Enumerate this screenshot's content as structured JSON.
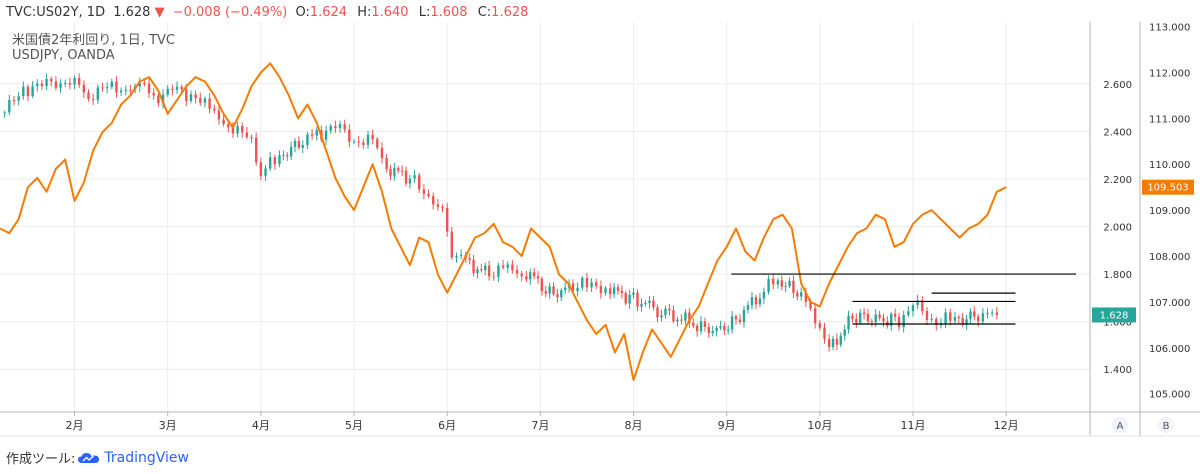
{
  "header": {
    "symbol": "TVC:US02Y, 1D",
    "last": "1.628",
    "change": "−0.008 (−0.49%)",
    "o_label": "O:",
    "o_val": "1.624",
    "h_label": "H:",
    "h_val": "1.640",
    "l_label": "L:",
    "l_val": "1.608",
    "c_label": "C:",
    "c_val": "1.628"
  },
  "legend": {
    "line1": "米国債2年利回り, 1日, TVC",
    "line2": "USDJPY, OANDA"
  },
  "badges": {
    "usdjpy": "109.503",
    "yield": "1.628"
  },
  "scale_buttons": {
    "a": "A",
    "b": "B"
  },
  "footer": {
    "prefix": "作成ツール:",
    "brand": "TradingView"
  },
  "colors": {
    "up": "#26a69a",
    "down": "#ef5350",
    "line": "#f57c00",
    "grid": "#ececec",
    "axis": "#b2b5be"
  },
  "chart_data": {
    "type": "line",
    "title": "米国債2年利回り, 1日, TVC / USDJPY, OANDA",
    "categories": [
      "2月",
      "3月",
      "4月",
      "5月",
      "6月",
      "7月",
      "8月",
      "9月",
      "10月",
      "11月",
      "12月"
    ],
    "x_range": [
      1.2,
      12.9
    ],
    "y_left_ticks": [
      "1.400",
      "1.600",
      "1.800",
      "2.000",
      "2.200",
      "2.400",
      "2.600"
    ],
    "y_left_range": [
      1.22,
      2.86
    ],
    "y_right_ticks": [
      "105.000",
      "106.000",
      "107.000",
      "108.000",
      "109.000",
      "110.000",
      "111.000",
      "112.000",
      "113.000"
    ],
    "y_right_range": [
      104.6,
      113.1
    ],
    "series": [
      {
        "name": "米国債2年利回り (candles, close)",
        "axis": "left",
        "x": [
          1.25,
          1.45,
          1.65,
          1.85,
          2.0,
          2.15,
          2.35,
          2.55,
          2.75,
          2.9,
          3.1,
          3.3,
          3.5,
          3.7,
          3.9,
          4.0,
          4.2,
          4.45,
          4.6,
          4.8,
          5.0,
          5.2,
          5.35,
          5.6,
          5.8,
          5.95,
          6.05,
          6.2,
          6.45,
          6.65,
          6.85,
          7.1,
          7.35,
          7.55,
          7.75,
          8.0,
          8.3,
          8.6,
          8.85,
          9.1,
          9.4,
          9.55,
          9.8,
          10.0,
          10.1,
          10.35,
          10.6,
          10.85,
          11.05,
          11.25,
          11.45,
          11.7,
          11.9
        ],
        "values": [
          2.48,
          2.58,
          2.59,
          2.62,
          2.6,
          2.55,
          2.58,
          2.59,
          2.57,
          2.55,
          2.57,
          2.55,
          2.47,
          2.42,
          2.35,
          2.22,
          2.3,
          2.35,
          2.39,
          2.42,
          2.37,
          2.35,
          2.25,
          2.2,
          2.14,
          2.05,
          1.9,
          1.85,
          1.8,
          1.82,
          1.81,
          1.72,
          1.74,
          1.76,
          1.73,
          1.7,
          1.64,
          1.6,
          1.55,
          1.61,
          1.73,
          1.78,
          1.7,
          1.6,
          1.48,
          1.62,
          1.61,
          1.61,
          1.66,
          1.6,
          1.61,
          1.62,
          1.628
        ]
      },
      {
        "name": "USDJPY",
        "axis": "right",
        "x": [
          1.2,
          1.3,
          1.4,
          1.5,
          1.6,
          1.7,
          1.8,
          1.9,
          2.0,
          2.1,
          2.2,
          2.3,
          2.4,
          2.5,
          2.6,
          2.7,
          2.8,
          2.9,
          3.0,
          3.1,
          3.2,
          3.3,
          3.4,
          3.5,
          3.6,
          3.7,
          3.8,
          3.9,
          4.0,
          4.1,
          4.2,
          4.3,
          4.4,
          4.5,
          4.6,
          4.7,
          4.8,
          4.9,
          5.0,
          5.1,
          5.2,
          5.3,
          5.4,
          5.5,
          5.6,
          5.7,
          5.8,
          5.9,
          6.0,
          6.1,
          6.2,
          6.3,
          6.4,
          6.5,
          6.6,
          6.7,
          6.8,
          6.9,
          7.0,
          7.1,
          7.2,
          7.3,
          7.4,
          7.5,
          7.6,
          7.7,
          7.8,
          7.9,
          8.0,
          8.1,
          8.2,
          8.3,
          8.4,
          8.5,
          8.6,
          8.7,
          8.8,
          8.9,
          9.0,
          9.1,
          9.2,
          9.3,
          9.4,
          9.5,
          9.6,
          9.7,
          9.8,
          9.9,
          10.0,
          10.1,
          10.2,
          10.3,
          10.4,
          10.5,
          10.6,
          10.7,
          10.8,
          10.9,
          11.0,
          11.1,
          11.2,
          11.3,
          11.4,
          11.5,
          11.6,
          11.7,
          11.8,
          11.9,
          12.0
        ],
        "values": [
          108.6,
          108.5,
          108.8,
          109.5,
          109.7,
          109.4,
          109.9,
          110.1,
          109.2,
          109.6,
          110.3,
          110.7,
          110.9,
          111.3,
          111.5,
          111.8,
          111.9,
          111.6,
          111.1,
          111.4,
          111.7,
          111.9,
          111.8,
          111.5,
          111.1,
          110.8,
          111.2,
          111.7,
          112.0,
          112.2,
          111.9,
          111.5,
          111.0,
          111.3,
          110.9,
          110.3,
          109.7,
          109.3,
          109.0,
          109.5,
          110.0,
          109.4,
          108.6,
          108.2,
          107.8,
          108.4,
          108.3,
          107.6,
          107.2,
          107.6,
          108.0,
          108.4,
          108.5,
          108.7,
          108.3,
          108.2,
          108.0,
          108.6,
          108.4,
          108.2,
          107.6,
          107.4,
          107.0,
          106.6,
          106.3,
          106.5,
          105.9,
          106.3,
          105.3,
          105.9,
          106.4,
          106.1,
          105.8,
          106.2,
          106.6,
          106.9,
          107.4,
          107.9,
          108.2,
          108.6,
          108.1,
          107.9,
          108.4,
          108.8,
          108.9,
          108.6,
          107.4,
          107.0,
          106.9,
          107.4,
          107.8,
          108.2,
          108.5,
          108.6,
          108.9,
          108.8,
          108.2,
          108.3,
          108.7,
          108.9,
          109.0,
          108.8,
          108.6,
          108.4,
          108.6,
          108.7,
          108.9,
          109.4,
          109.5
        ]
      }
    ],
    "annotations": [
      {
        "type": "horizontal-line",
        "axis": "left",
        "value": 1.8,
        "x_from": 9.05,
        "x_to": 12.9
      },
      {
        "type": "horizontal-line",
        "axis": "left",
        "value": 1.72,
        "x_from": 11.2,
        "x_to": 12.1
      },
      {
        "type": "horizontal-line",
        "axis": "left",
        "value": 1.685,
        "x_from": 10.35,
        "x_to": 12.1
      },
      {
        "type": "horizontal-line",
        "axis": "left",
        "value": 1.59,
        "x_from": 10.35,
        "x_to": 12.1
      }
    ]
  }
}
